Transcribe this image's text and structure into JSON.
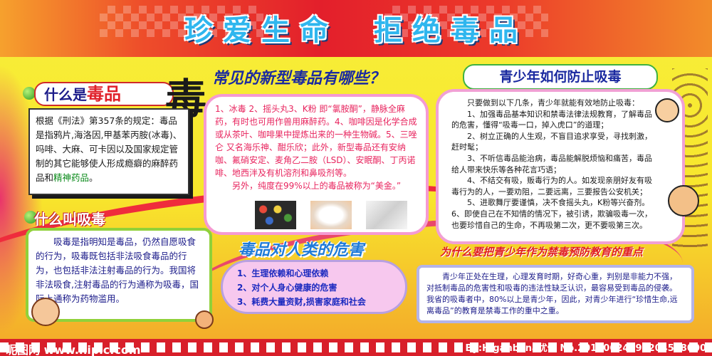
{
  "title": {
    "left": "珍爱生命",
    "right": "拒绝毒品"
  },
  "big_char": "毒",
  "definition": {
    "header_pre": "什么是",
    "header_red": "毒品",
    "body_pre": "根据《刑法》第357条的规定：毒品是指鸦片,海洛因,甲基苯丙胺(冰毒)、吗啡、大麻、可卡因以及国家规定管制的其它能够使人形成瘾癖的麻醉药品和",
    "body_highlight": "精神药品",
    "body_end": "。"
  },
  "new_drugs": {
    "header": "常见的新型毒品有哪些？",
    "body": "1、冰毒 2、摇头丸3、K粉 即“氯胺酮”，静脉全麻药，有时也可用作兽用麻醉药。4、咖啡因是化学合成或从茶叶、咖啡果中提炼出来的一种生物碱。5、三唑仑 又名海乐神、酣乐欣；此外，新型毒品还有安纳咖、氟硝安定、麦角乙二胺（LSD）、安眠酮、丁丙诺啡、地西泮及有机溶剂和鼻吸剂等。",
    "body2": "另外，纯度在99%以上的毒品被称为“美金。”"
  },
  "teen_prevention": {
    "header": "青少年如何防止吸毒",
    "intro": "只要做到以下几条，青少年就能有效地防止吸毒：",
    "items": [
      "1、加强毒品基本知识和禁毒法律法规教育，了解毒品的危害，懂得“吸毒一口，掉入虎口”的道理；",
      "2、树立正确的人生观，不盲目追求享受，寻找刺激，赶时髦；",
      "3、不听信毒品能治病，毒品能解脱烦恼和痛苦，毒品给人带来快乐等各种花言巧语；",
      "4、不结交有吸，贩毒行为的人。如发现亲朋好友有吸毒行为的人，一要劝阻，二要远离，三要报告公安机关；",
      "5、进歌舞厅要谨慎，决不食摇头丸，K粉等兴奋剂。 6、即使自己在不知情的情况下，被引诱，欺骗吸毒一次，也要珍惜自己的生命，不再吸第二次，更不要吸第三次。"
    ]
  },
  "drug_abuse": {
    "header": "什么叫吸毒",
    "body": "吸毒是指明知是毒品，仍然自愿吸食的行为，吸毒既包括非法吸食毒品的行为，也包括非法注射毒品的行为。我国将非法吸食,注射毒品的行为通称为吸毒，国际上通称为药物滥用。"
  },
  "harm": {
    "header": "毒品对人类的危害",
    "items": [
      "1、生理依赖和心理依赖",
      "2、对个人身心健康的危害",
      "3、耗费大量资财,损害家庭和社会"
    ]
  },
  "why_teens": {
    "header": "为什么要把青少年作为禁毒预防教育的重点",
    "body": "青少年正处在生理，心理发育时期，好奇心重，判别是非能力不强，对抵制毒品的危害性和吸毒的违法性缺乏认识，最容易受到毒品的侵袭。我省的吸毒者中，80%以上是青少年，因此，对青少年进行“珍惜生命,远离毒品”的教育是禁毒工作的重中之重。"
  },
  "watermark": {
    "left": "昵图网 www.nipic.com",
    "right": "By:Higanbana优伤 No.20130624092204528000"
  },
  "colors": {
    "title": "#2fb6ee",
    "band": "#e31f2b",
    "background": "#f7ef3a",
    "drug_text": "#e8245e",
    "dark_blue": "#1c1c8a"
  }
}
